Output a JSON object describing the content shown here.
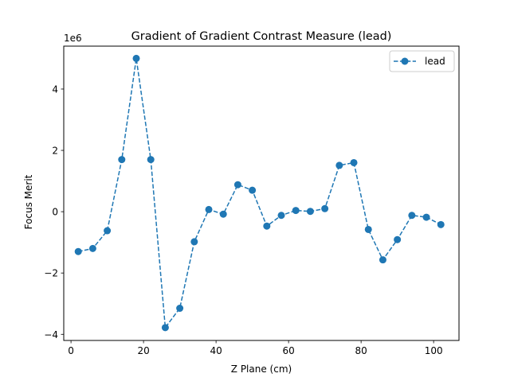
{
  "chart_data": {
    "type": "line",
    "title": "Gradient of Gradient Contrast Measure (lead)",
    "xlabel": "Z Plane (cm)",
    "ylabel": "Focus Merit",
    "y_scale_label": "1e6",
    "xlim": [
      -2.0,
      107.0
    ],
    "ylim": [
      -4.2,
      5.4
    ],
    "x_ticks": [
      0,
      20,
      40,
      60,
      80,
      100
    ],
    "x_tick_labels": [
      "0",
      "20",
      "40",
      "60",
      "80",
      "100"
    ],
    "y_ticks": [
      -4,
      -2,
      0,
      2,
      4
    ],
    "y_tick_labels": [
      "−4",
      "−2",
      "0",
      "2",
      "4"
    ],
    "grid": false,
    "legend_position": "top-right",
    "series": [
      {
        "name": "lead",
        "color": "#1f77b4",
        "line_style": "dashed",
        "marker": "circle",
        "x": [
          2,
          6,
          10,
          14,
          18,
          22,
          26,
          30,
          34,
          38,
          42,
          46,
          50,
          54,
          58,
          62,
          66,
          70,
          74,
          78,
          82,
          86,
          90,
          94,
          98,
          102
        ],
        "y": [
          -1.3,
          -1.2,
          -0.62,
          1.7,
          5.0,
          1.7,
          -3.78,
          -3.15,
          -0.98,
          0.07,
          -0.08,
          0.88,
          0.7,
          -0.47,
          -0.12,
          0.04,
          0.01,
          0.1,
          1.51,
          1.6,
          -0.58,
          -1.57,
          -0.91,
          -0.12,
          -0.18,
          -0.42
        ]
      }
    ]
  }
}
